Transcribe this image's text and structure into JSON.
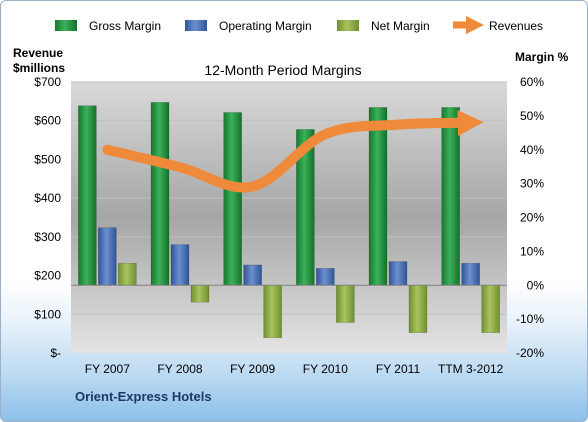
{
  "chart_data": {
    "type": "bar",
    "title": "12-Month Period Margins",
    "company": "Orient-Express Hotels",
    "ylabel_left": "Revenue\n$millions",
    "ylabel_right": "Margin %",
    "categories": [
      "FY 2007",
      "FY 2008",
      "FY 2009",
      "FY 2010",
      "FY 2011",
      "TTM 3-2012"
    ],
    "ylim_left": [
      0,
      700
    ],
    "ylim_right": [
      -20,
      60
    ],
    "yticks_left": [
      "$-",
      "$100",
      "$200",
      "$300",
      "$400",
      "$500",
      "$600",
      "$700"
    ],
    "yticks_right": [
      "-20%",
      "-10%",
      "0%",
      "10%",
      "20%",
      "30%",
      "40%",
      "50%",
      "60%"
    ],
    "legend_position": "top",
    "series": [
      {
        "name": "Gross Margin",
        "axis": "right",
        "color": "#1e8a3c",
        "values": [
          53,
          54,
          51,
          46,
          52.5,
          52.5
        ]
      },
      {
        "name": "Operating Margin",
        "axis": "right",
        "color": "#4a6fb3",
        "values": [
          17,
          12,
          6,
          5,
          7,
          6.5
        ]
      },
      {
        "name": "Net Margin",
        "axis": "right",
        "color": "#8caa46",
        "values": [
          6.5,
          -5,
          -15.5,
          -11,
          -14,
          -14
        ]
      },
      {
        "name": "Revenues",
        "axis": "left",
        "color": "#ee8a3a",
        "values": [
          525,
          480,
          430,
          565,
          590,
          595
        ]
      }
    ]
  }
}
